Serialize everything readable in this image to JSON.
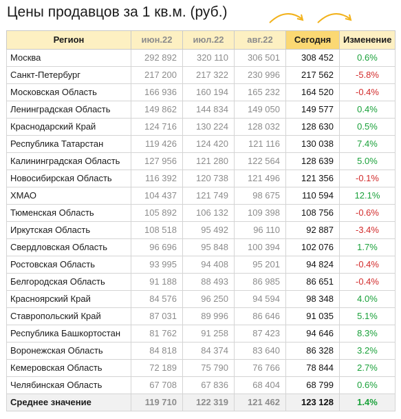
{
  "title": "Цены продавцов за 1 кв.м. (руб.)",
  "colors": {
    "header_bg": "#fdf0c2",
    "today_header_bg": "#fbd873",
    "positive": "#1aa13a",
    "negative": "#d22b2b",
    "arrow": "#f2b21c",
    "muted": "#8c8c8c"
  },
  "icons": [
    "curved-arrow-icon"
  ],
  "table": {
    "headers": {
      "region": "Регион",
      "jun": "июн.22",
      "jul": "июл.22",
      "aug": "авг.22",
      "today": "Сегодня",
      "change": "Изменение"
    },
    "rows": [
      {
        "region": "Москва",
        "jun": "292 892",
        "jul": "320 110",
        "aug": "306 501",
        "today": "308 452",
        "change": "0.6%"
      },
      {
        "region": "Санкт-Петербург",
        "jun": "217 200",
        "jul": "217 322",
        "aug": "230 996",
        "today": "217 562",
        "change": "-5.8%"
      },
      {
        "region": "Московская Область",
        "jun": "166 936",
        "jul": "160 194",
        "aug": "165 232",
        "today": "164 520",
        "change": "-0.4%"
      },
      {
        "region": "Ленинградская Область",
        "jun": "149 862",
        "jul": "144 834",
        "aug": "149 050",
        "today": "149 577",
        "change": "0.4%"
      },
      {
        "region": "Краснодарский Край",
        "jun": "124 716",
        "jul": "130 224",
        "aug": "128 032",
        "today": "128 630",
        "change": "0.5%"
      },
      {
        "region": "Республика Татарстан",
        "jun": "119 426",
        "jul": "124 420",
        "aug": "121 116",
        "today": "130 038",
        "change": "7.4%"
      },
      {
        "region": "Калининградская Область",
        "jun": "127 956",
        "jul": "121 280",
        "aug": "122 564",
        "today": "128 639",
        "change": "5.0%"
      },
      {
        "region": "Новосибирская Область",
        "jun": "116 392",
        "jul": "120 738",
        "aug": "121 496",
        "today": "121 356",
        "change": "-0.1%"
      },
      {
        "region": "ХМАО",
        "jun": "104 437",
        "jul": "121 749",
        "aug": "98 675",
        "today": "110 594",
        "change": "12.1%"
      },
      {
        "region": "Тюменская Область",
        "jun": "105 892",
        "jul": "106 132",
        "aug": "109 398",
        "today": "108 756",
        "change": "-0.6%"
      },
      {
        "region": "Иркутская Область",
        "jun": "108 518",
        "jul": "95 492",
        "aug": "96 110",
        "today": "92 887",
        "change": "-3.4%"
      },
      {
        "region": "Свердловская Область",
        "jun": "96 696",
        "jul": "95 848",
        "aug": "100 394",
        "today": "102 076",
        "change": "1.7%"
      },
      {
        "region": "Ростовская Область",
        "jun": "93 995",
        "jul": "94 408",
        "aug": "95 201",
        "today": "94 824",
        "change": "-0.4%"
      },
      {
        "region": "Белгородская Область",
        "jun": "91 188",
        "jul": "88 493",
        "aug": "86 985",
        "today": "86 651",
        "change": "-0.4%"
      },
      {
        "region": "Красноярский Край",
        "jun": "84 576",
        "jul": "96 250",
        "aug": "94 594",
        "today": "98 348",
        "change": "4.0%"
      },
      {
        "region": "Ставропольский Край",
        "jun": "87 031",
        "jul": "89 996",
        "aug": "86 646",
        "today": "91 035",
        "change": "5.1%"
      },
      {
        "region": "Республика Башкортостан",
        "jun": "81 762",
        "jul": "91 258",
        "aug": "87 423",
        "today": "94 646",
        "change": "8.3%"
      },
      {
        "region": "Воронежская Область",
        "jun": "84 818",
        "jul": "84 374",
        "aug": "83 640",
        "today": "86 328",
        "change": "3.2%"
      },
      {
        "region": "Кемеровская Область",
        "jun": "72 189",
        "jul": "75 790",
        "aug": "76 766",
        "today": "78 844",
        "change": "2.7%"
      },
      {
        "region": "Челябинская Область",
        "jun": "67 708",
        "jul": "67 836",
        "aug": "68 404",
        "today": "68 799",
        "change": "0.6%"
      }
    ],
    "average": {
      "region": "Среднее значение",
      "jun": "119 710",
      "jul": "122 319",
      "aug": "121 462",
      "today": "123 128",
      "change": "1.4%"
    }
  }
}
